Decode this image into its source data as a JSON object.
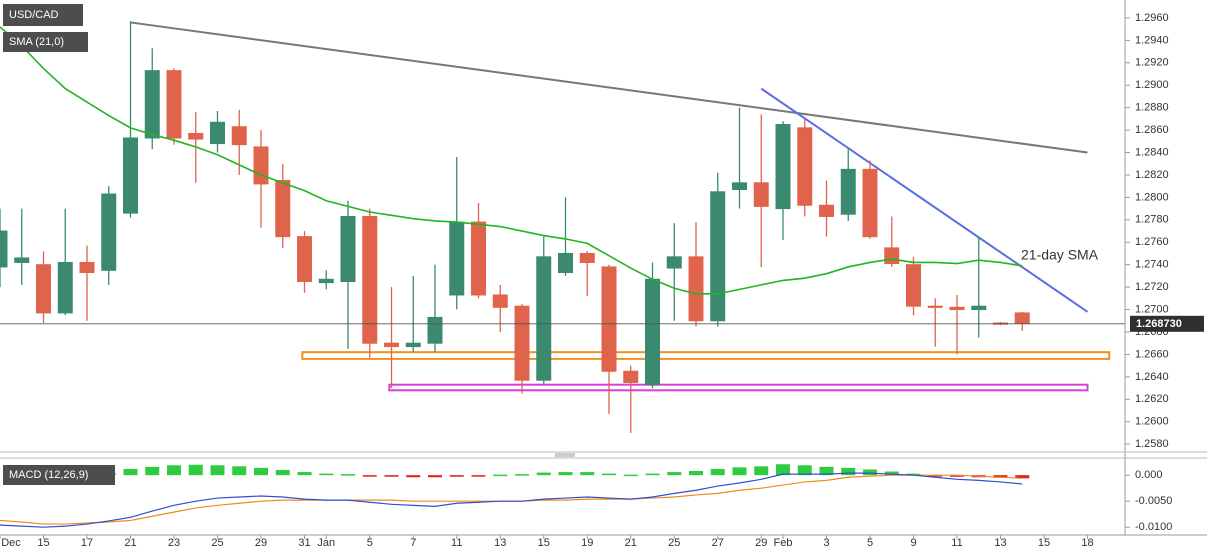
{
  "chart_data": {
    "type": "candlestick",
    "title": "USD/CAD",
    "categories": [
      "Dec",
      null,
      "15",
      null,
      "17",
      null,
      "21",
      null,
      "23",
      null,
      "25",
      null,
      "29",
      null,
      "31",
      "Jan",
      null,
      "5",
      null,
      "7",
      null,
      "11",
      null,
      "13",
      null,
      "15",
      null,
      "19",
      null,
      "21",
      null,
      "25",
      null,
      "27",
      null,
      "29",
      "Feb",
      null,
      "3",
      null,
      "5",
      null,
      "9",
      null,
      "11",
      null,
      "13",
      null,
      "15",
      null,
      "18"
    ],
    "open": [
      1.2738,
      1.2742,
      1.274,
      1.2697,
      1.2742,
      1.2735,
      1.2786,
      1.2853,
      1.2913,
      1.2857,
      1.2848,
      1.2863,
      1.2845,
      1.2815,
      1.2765,
      1.2724,
      1.2725,
      1.2783,
      1.267,
      1.2667,
      1.267,
      1.2713,
      1.2778,
      1.2713,
      1.2703,
      1.2637,
      1.2733,
      1.275,
      1.2738,
      1.2645,
      1.2633,
      1.2737,
      1.2747,
      1.269,
      1.2807,
      1.2813,
      1.279,
      1.2862,
      1.2793,
      1.2785,
      1.2825,
      1.2755,
      1.274,
      1.2703,
      1.2702,
      1.27,
      1.2688,
      1.2697,
      null,
      null,
      null
    ],
    "high": [
      1.279,
      1.279,
      1.2752,
      1.279,
      1.2757,
      1.281,
      1.2957,
      1.2933,
      1.2915,
      1.2876,
      1.2877,
      1.2878,
      1.286,
      1.283,
      1.277,
      1.2735,
      1.2797,
      1.279,
      1.272,
      1.273,
      1.274,
      1.2836,
      1.2795,
      1.2722,
      1.2705,
      1.2765,
      1.28,
      1.2752,
      1.274,
      1.265,
      1.2742,
      1.2777,
      1.2778,
      1.2822,
      1.288,
      1.2874,
      1.2868,
      1.287,
      1.2815,
      1.2843,
      1.2833,
      1.2783,
      1.2747,
      1.271,
      1.2713,
      1.2765,
      1.2689,
      1.2698,
      null,
      null,
      null
    ],
    "low": [
      1.272,
      1.2722,
      1.2688,
      1.2695,
      1.269,
      1.2722,
      1.2782,
      1.2843,
      1.2847,
      1.2813,
      1.284,
      1.282,
      1.2773,
      1.2755,
      1.2715,
      1.2718,
      1.2665,
      1.2657,
      1.263,
      1.2662,
      1.2662,
      1.27,
      1.271,
      1.268,
      1.2625,
      1.2633,
      1.273,
      1.2712,
      1.2607,
      1.259,
      1.263,
      1.269,
      1.2685,
      1.2685,
      1.279,
      1.2738,
      1.2762,
      1.2783,
      1.2765,
      1.2779,
      1.2763,
      1.2738,
      1.2695,
      1.2667,
      1.266,
      1.2675,
      1.2686,
      1.2681,
      null,
      null,
      null
    ],
    "close": [
      1.277,
      1.2746,
      1.2697,
      1.2742,
      1.2733,
      1.2803,
      1.2853,
      1.2913,
      1.2853,
      1.2852,
      1.2867,
      1.2847,
      1.2812,
      1.2765,
      1.2725,
      1.2727,
      1.2783,
      1.267,
      1.2667,
      1.267,
      1.2693,
      1.2778,
      1.2713,
      1.2702,
      1.2637,
      1.2747,
      1.275,
      1.2742,
      1.2645,
      1.2635,
      1.2727,
      1.2747,
      1.269,
      1.2805,
      1.2813,
      1.2792,
      1.2865,
      1.2793,
      1.2783,
      1.2825,
      1.2765,
      1.2741,
      1.2703,
      1.2702,
      1.27,
      1.2703,
      1.2687,
      1.2688,
      null,
      null,
      null
    ],
    "up_color": "#3b8a70",
    "down_color": "#e0634c",
    "ylim": [
      1.2573,
      1.2976
    ],
    "yticks": [
      {
        "value": 1.258,
        "label": "1.2580"
      },
      {
        "value": 1.26,
        "label": "1.2600"
      },
      {
        "value": 1.262,
        "label": "1.2620"
      },
      {
        "value": 1.264,
        "label": "1.2640"
      },
      {
        "value": 1.266,
        "label": "1.2660"
      },
      {
        "value": 1.268,
        "label": "1.2680"
      },
      {
        "value": 1.27,
        "label": "1.2700"
      },
      {
        "value": 1.272,
        "label": "1.2720"
      },
      {
        "value": 1.274,
        "label": "1.2740"
      },
      {
        "value": 1.276,
        "label": "1.2760"
      },
      {
        "value": 1.278,
        "label": "1.2780"
      },
      {
        "value": 1.28,
        "label": "1.2800"
      },
      {
        "value": 1.282,
        "label": "1.2820"
      },
      {
        "value": 1.284,
        "label": "1.2840"
      },
      {
        "value": 1.286,
        "label": "1.2860"
      },
      {
        "value": 1.288,
        "label": "1.2880"
      },
      {
        "value": 1.29,
        "label": "1.2900"
      },
      {
        "value": 1.292,
        "label": "1.2920"
      },
      {
        "value": 1.294,
        "label": "1.2940"
      },
      {
        "value": 1.296,
        "label": "1.2960"
      }
    ],
    "last_price": {
      "value": 1.26873,
      "label": "1.268730"
    },
    "sma": {
      "name": "SMA (21,0)",
      "annotation": "21-day SMA",
      "color": "#22b522",
      "values": [
        1.2952,
        1.2935,
        1.2915,
        1.2897,
        1.2885,
        1.2873,
        1.2862,
        1.2856,
        1.2851,
        1.2845,
        1.2838,
        1.2829,
        1.282,
        1.2813,
        1.2806,
        1.2797,
        1.2792,
        1.2787,
        1.2784,
        1.2781,
        1.2779,
        1.2778,
        1.2776,
        1.2774,
        1.277,
        1.2766,
        1.2763,
        1.2759,
        1.2748,
        1.2737,
        1.2727,
        1.2719,
        1.2714,
        1.2714,
        1.2718,
        1.2722,
        1.2726,
        1.2728,
        1.2732,
        1.2738,
        1.2742,
        1.2745,
        1.2742,
        1.2742,
        1.2741,
        1.2744,
        1.2742,
        1.2739,
        null,
        null,
        null
      ]
    },
    "trendlines": [
      {
        "color": "#777777",
        "x": [
          6,
          50
        ],
        "y": [
          1.2956,
          1.284
        ]
      },
      {
        "color": "#5b6ee1",
        "x": [
          35,
          50
        ],
        "y": [
          1.2897,
          1.2698
        ]
      }
    ],
    "zones": [
      {
        "color": "#f0901e",
        "x": [
          13.9,
          51
        ],
        "y": [
          1.2656,
          1.2662
        ]
      },
      {
        "color": "#d63fd6",
        "x": [
          17.9,
          50
        ],
        "y": [
          1.2628,
          1.2633
        ]
      }
    ],
    "macd": {
      "name": "MACD (12,26,9)",
      "ylim": [
        -0.0115,
        0.0033
      ],
      "yticks": [
        {
          "value": 0,
          "label": "0.000"
        },
        {
          "value": -0.005,
          "label": "-0.0050"
        },
        {
          "value": -0.01,
          "label": "-0.0100"
        }
      ],
      "macd_color": "#3050d0",
      "signal_color": "#f08a20",
      "hist_up_color": "#2ecc40",
      "hist_down_color": "#e02020",
      "histogram": [
        null,
        null,
        null,
        null,
        null,
        0.0004,
        0.0012,
        0.0016,
        0.0019,
        0.002,
        0.0019,
        0.0017,
        0.0014,
        0.001,
        0.0006,
        0.0003,
        0.0002,
        -0.0001,
        -0.0003,
        -0.0004,
        -0.0004,
        -0.0003,
        -0.0001,
        0.0001,
        0.0002,
        0.0005,
        0.0006,
        0.0006,
        0.0003,
        0.0001,
        0.0003,
        0.0006,
        0.0008,
        0.0012,
        0.0015,
        0.0017,
        0.0021,
        0.0019,
        0.0016,
        0.0014,
        0.0011,
        0.0007,
        0.0003,
        -0.0001,
        -0.0003,
        -0.0004,
        -0.0005,
        -0.0006,
        null,
        null,
        null
      ],
      "macd": [
        -0.0096,
        -0.0098,
        -0.01,
        -0.0098,
        -0.0094,
        -0.0088,
        -0.0081,
        -0.0069,
        -0.0058,
        -0.005,
        -0.0044,
        -0.0042,
        -0.004,
        -0.0042,
        -0.0046,
        -0.0048,
        -0.0048,
        -0.0052,
        -0.0056,
        -0.0058,
        -0.006,
        -0.0054,
        -0.0052,
        -0.005,
        -0.005,
        -0.0046,
        -0.0044,
        -0.0042,
        -0.0044,
        -0.0046,
        -0.0042,
        -0.0035,
        -0.0029,
        -0.0021,
        -0.0015,
        -0.0008,
        0.0002,
        0.0002,
        0.0002,
        0.0004,
        0.0004,
        0.0002,
        0,
        -0.0004,
        -0.0008,
        -0.001,
        -0.0013,
        -0.0017,
        null,
        null,
        null
      ],
      "signal": [
        -0.0087,
        -0.009,
        -0.0094,
        -0.0094,
        -0.0092,
        -0.009,
        -0.0087,
        -0.0079,
        -0.0071,
        -0.0063,
        -0.0058,
        -0.0054,
        -0.005,
        -0.0048,
        -0.0048,
        -0.0048,
        -0.0048,
        -0.0048,
        -0.0048,
        -0.005,
        -0.005,
        -0.005,
        -0.005,
        -0.005,
        -0.005,
        -0.0048,
        -0.0048,
        -0.0046,
        -0.0046,
        -0.0046,
        -0.0044,
        -0.0042,
        -0.0038,
        -0.0035,
        -0.0029,
        -0.0025,
        -0.0019,
        -0.0013,
        -0.001,
        -0.0004,
        -0.0002,
        0,
        0,
        0,
        0,
        -0.0002,
        -0.0004,
        -0.0006,
        null,
        null,
        null
      ]
    }
  }
}
